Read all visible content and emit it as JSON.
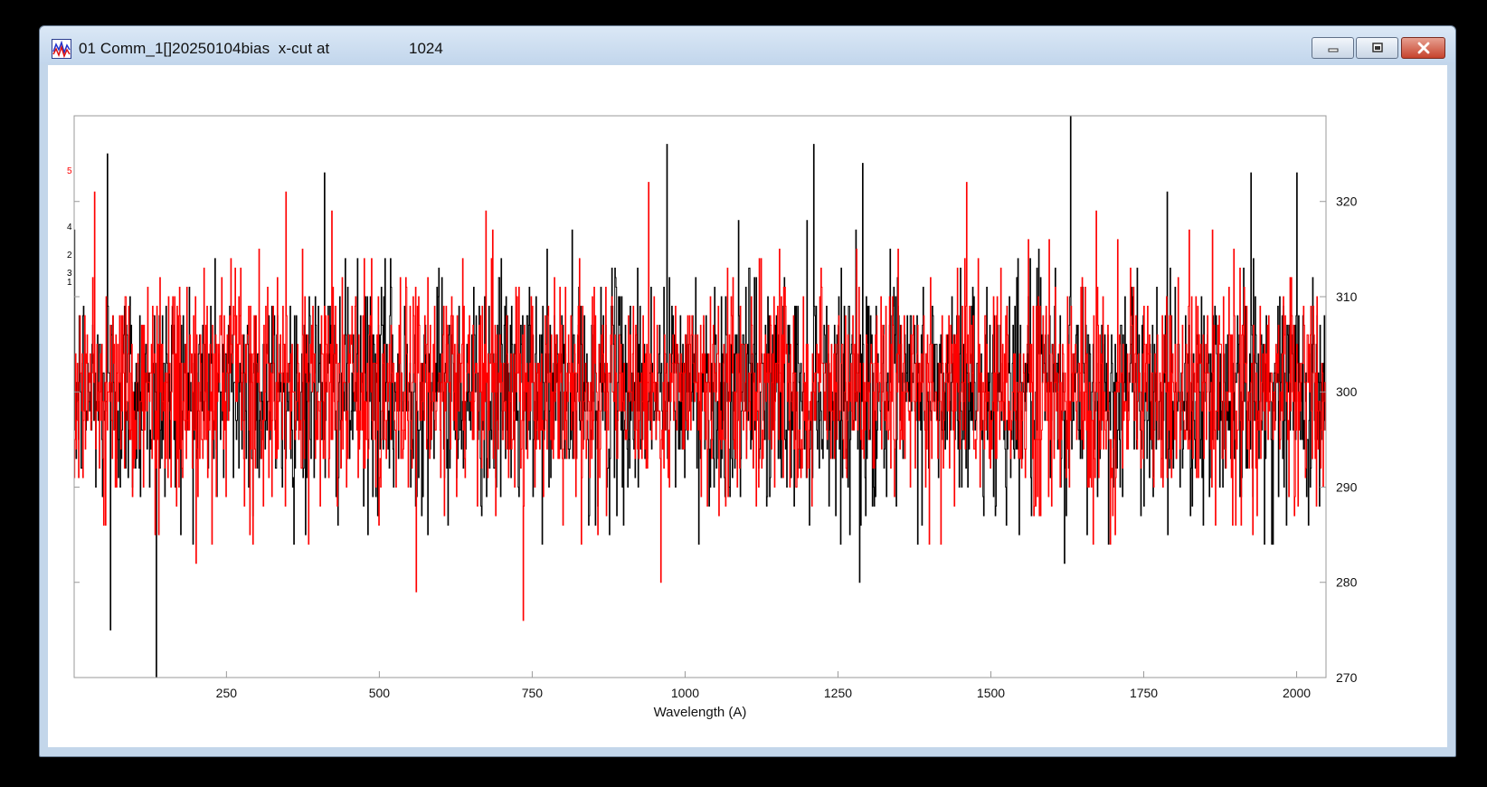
{
  "window": {
    "title": "01 Comm_1[]20250104bias  x-cut at",
    "title_position": "1024",
    "icon": "spectrum-plot-icon",
    "controls": [
      "minimize-icon",
      "maximize-icon",
      "close-icon"
    ]
  },
  "chart_data": {
    "type": "line",
    "title": "",
    "xlabel": "Wavelength (A)",
    "ylabel": "",
    "xlim": [
      1,
      2048
    ],
    "ylim": [
      270,
      329
    ],
    "x_ticks": [
      250,
      500,
      750,
      1000,
      1250,
      1500,
      1750,
      2000
    ],
    "y_ticks_right": [
      270,
      280,
      290,
      300,
      310,
      320
    ],
    "left_axis_marks": [
      {
        "text": "5",
        "color": "#ff0000"
      },
      {
        "text": "4",
        "color": "#000000"
      },
      {
        "text": "2",
        "color": "#000000"
      },
      {
        "text": "3",
        "color": "#000000"
      },
      {
        "text": "1",
        "color": "#000000"
      }
    ],
    "grid": false,
    "series": [
      {
        "color": "#000000",
        "mean": 300,
        "std": 6,
        "spikes": [
          {
            "x": 55,
            "y": 325
          },
          {
            "x": 60,
            "y": 275
          },
          {
            "x": 135,
            "y": 270
          },
          {
            "x": 410,
            "y": 323
          },
          {
            "x": 970,
            "y": 326
          },
          {
            "x": 1210,
            "y": 326
          },
          {
            "x": 1290,
            "y": 324
          },
          {
            "x": 1285,
            "y": 280
          },
          {
            "x": 1630,
            "y": 329
          },
          {
            "x": 1620,
            "y": 282
          },
          {
            "x": 1925,
            "y": 323
          },
          {
            "x": 2000,
            "y": 323
          }
        ]
      },
      {
        "color": "#ff0000",
        "mean": 300,
        "std": 6,
        "spikes": [
          {
            "x": 560,
            "y": 279
          },
          {
            "x": 735,
            "y": 276
          },
          {
            "x": 940,
            "y": 322
          },
          {
            "x": 960,
            "y": 280
          },
          {
            "x": 1460,
            "y": 322
          },
          {
            "x": 200,
            "y": 282
          }
        ]
      }
    ]
  }
}
